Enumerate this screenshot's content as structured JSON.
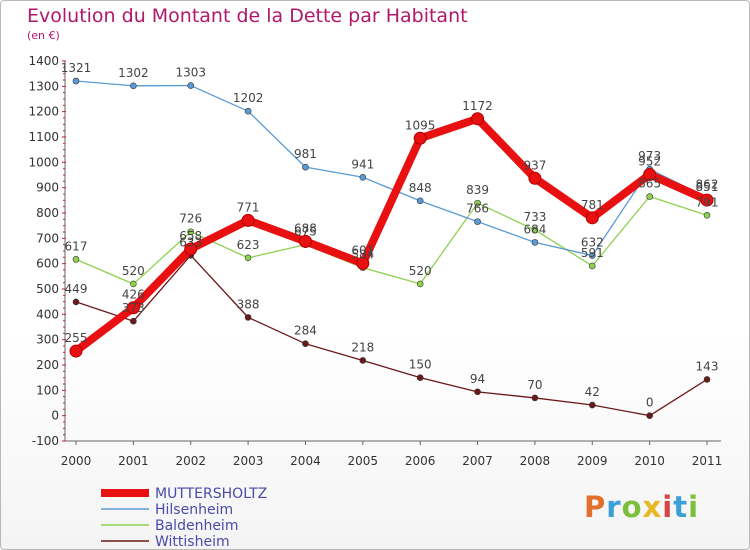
{
  "title": "Evolution du Montant de la Dette par Habitant",
  "subtitle": "(en €)",
  "logo": {
    "text": "Proxiti",
    "colors": [
      "#e0702a",
      "#3aa0d8",
      "#7bbf3a",
      "#e8b820",
      "#d64545",
      "#3aa0d8",
      "#7bbf3a"
    ]
  },
  "chart_data": {
    "type": "line",
    "title": "Evolution du Montant de la Dette par Habitant",
    "subtitle": "(en €)",
    "x": [
      "2000",
      "2001",
      "2002",
      "2003",
      "2004",
      "2005",
      "2006",
      "2007",
      "2008",
      "2009",
      "2010",
      "2011"
    ],
    "ylim": [
      -100,
      1400
    ],
    "yticks": [
      "-100",
      "0",
      "100",
      "200",
      "300",
      "400",
      "500",
      "600",
      "700",
      "800",
      "900",
      "1000",
      "1100",
      "1200",
      "1300",
      "1400"
    ],
    "grid": false,
    "legend_position": "bottom-left",
    "series": [
      {
        "name": "MUTTERSHOLTZ",
        "color": "#e81010",
        "values": [
          255,
          426,
          658,
          771,
          688,
          601,
          1095,
          1172,
          937,
          781,
          952,
          851
        ],
        "labels": [
          "255",
          "426",
          "658",
          "771",
          "688",
          "601",
          "1095",
          "1172",
          "937",
          "781",
          "952",
          "851"
        ]
      },
      {
        "name": "Hilsenheim",
        "color": "#5a9bd5",
        "values": [
          1321,
          1302,
          1303,
          1202,
          981,
          941,
          848,
          766,
          684,
          632,
          973,
          862
        ],
        "labels": [
          "1321",
          "1302",
          "1303",
          "1202",
          "981",
          "941",
          "848",
          "766",
          "684",
          "632",
          "973",
          "862"
        ]
      },
      {
        "name": "Baldenheim",
        "color": "#8fd14f",
        "values": [
          617,
          520,
          726,
          623,
          675,
          584,
          520,
          839,
          733,
          591,
          865,
          791
        ],
        "labels": [
          "617",
          "520",
          "726",
          "623",
          "675",
          "584",
          "520",
          "839",
          "733",
          "591",
          "865",
          "791"
        ]
      },
      {
        "name": "Wittisheim",
        "color": "#6b1a1a",
        "values": [
          449,
          373,
          633,
          388,
          284,
          218,
          150,
          94,
          70,
          42,
          0,
          143
        ],
        "labels": [
          "449",
          "373",
          "633",
          "388",
          "284",
          "218",
          "150",
          "94",
          "70",
          "42",
          "0",
          "143"
        ]
      }
    ]
  }
}
